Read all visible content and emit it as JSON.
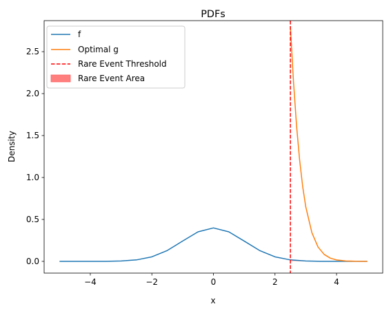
{
  "chart_data": {
    "type": "line",
    "title": "PDFs",
    "xlabel": "x",
    "ylabel": "Density",
    "xlim": [
      -5.5,
      5.5
    ],
    "ylim": [
      -0.14,
      2.87
    ],
    "xticks": [
      -4,
      -2,
      0,
      2,
      4
    ],
    "xtick_labels": [
      "−4",
      "−2",
      "0",
      "2",
      "4"
    ],
    "yticks": [
      0.0,
      0.5,
      1.0,
      1.5,
      2.0,
      2.5
    ],
    "ytick_labels": [
      "0.0",
      "0.5",
      "1.0",
      "1.5",
      "2.0",
      "2.5"
    ],
    "grid": false,
    "legend_position": "top-left",
    "threshold": 2.5,
    "series": [
      {
        "name": "f",
        "color": "#1f77b4",
        "x": [
          -5,
          -4.5,
          -4,
          -3.5,
          -3,
          -2.5,
          -2,
          -1.5,
          -1,
          -0.5,
          0,
          0.5,
          1,
          1.5,
          2,
          2.5,
          3,
          3.5,
          4,
          4.5,
          5
        ],
        "y": [
          0.0,
          0.0,
          0.0001,
          0.0009,
          0.0044,
          0.0175,
          0.054,
          0.1295,
          0.242,
          0.3521,
          0.3989,
          0.3521,
          0.242,
          0.1295,
          0.054,
          0.0175,
          0.0044,
          0.0009,
          0.0001,
          0.0,
          0.0
        ]
      },
      {
        "name": "Optimal g",
        "color": "#ff7f0e",
        "x": [
          2.5,
          2.6,
          2.7,
          2.8,
          2.9,
          3.0,
          3.2,
          3.4,
          3.6,
          3.8,
          4.0,
          4.3,
          4.6,
          5.0
        ],
        "y": [
          2.8,
          2.15,
          1.62,
          1.21,
          0.89,
          0.65,
          0.34,
          0.17,
          0.082,
          0.038,
          0.017,
          0.005,
          0.0015,
          0.0002
        ]
      }
    ],
    "threshold_line": {
      "name": "Rare Event Threshold",
      "color": "#ff0000",
      "style": "dashed"
    },
    "area": {
      "name": "Rare Event Area",
      "color": "#ff7f7f"
    }
  }
}
